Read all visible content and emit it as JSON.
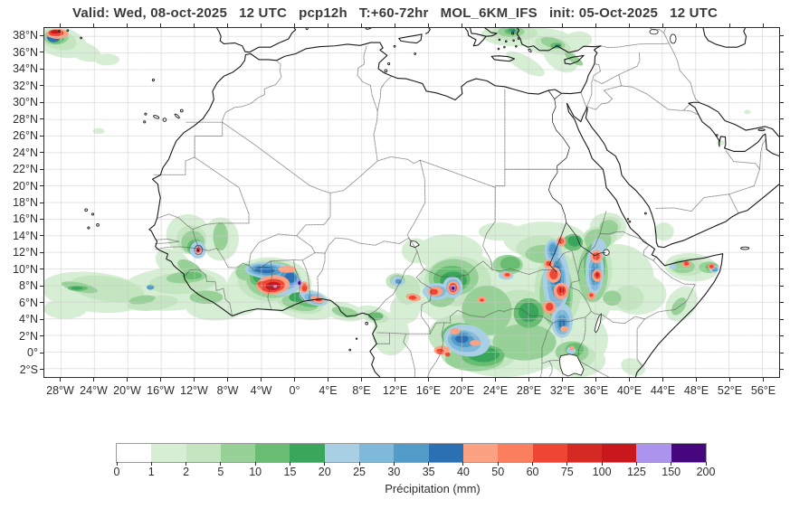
{
  "title": "Valid: Wed, 08-oct-2025   12 UTC   pcp12h   T:+60-72hr   MOL_6KM_IFS   init: 05-Oct-2025   12 UTC",
  "map": {
    "extent": {
      "lon_min": -30,
      "lon_max": 58,
      "lat_min": -3,
      "lat_max": 39
    },
    "grid": "dashed",
    "lat_ticks": [
      {
        "label": "38°N",
        "deg": 38
      },
      {
        "label": "36°N",
        "deg": 36
      },
      {
        "label": "34°N",
        "deg": 34
      },
      {
        "label": "32°N",
        "deg": 32
      },
      {
        "label": "30°N",
        "deg": 30
      },
      {
        "label": "28°N",
        "deg": 28
      },
      {
        "label": "26°N",
        "deg": 26
      },
      {
        "label": "24°N",
        "deg": 24
      },
      {
        "label": "22°N",
        "deg": 22
      },
      {
        "label": "20°N",
        "deg": 20
      },
      {
        "label": "18°N",
        "deg": 18
      },
      {
        "label": "16°N",
        "deg": 16
      },
      {
        "label": "14°N",
        "deg": 14
      },
      {
        "label": "12°N",
        "deg": 12
      },
      {
        "label": "10°N",
        "deg": 10
      },
      {
        "label": "8°N",
        "deg": 8
      },
      {
        "label": "6°N",
        "deg": 6
      },
      {
        "label": "4°N",
        "deg": 4
      },
      {
        "label": "2°N",
        "deg": 2
      },
      {
        "label": "0°",
        "deg": 0
      },
      {
        "label": "2°S",
        "deg": -2
      }
    ],
    "lon_ticks": [
      {
        "label": "28°W",
        "deg": -28
      },
      {
        "label": "24°W",
        "deg": -24
      },
      {
        "label": "20°W",
        "deg": -20
      },
      {
        "label": "16°W",
        "deg": -16
      },
      {
        "label": "12°W",
        "deg": -12
      },
      {
        "label": "8°W",
        "deg": -8
      },
      {
        "label": "4°W",
        "deg": -4
      },
      {
        "label": "0°",
        "deg": 0
      },
      {
        "label": "4°E",
        "deg": 4
      },
      {
        "label": "8°E",
        "deg": 8
      },
      {
        "label": "12°E",
        "deg": 12
      },
      {
        "label": "16°E",
        "deg": 16
      },
      {
        "label": "20°E",
        "deg": 20
      },
      {
        "label": "24°E",
        "deg": 24
      },
      {
        "label": "28°E",
        "deg": 28
      },
      {
        "label": "32°E",
        "deg": 32
      },
      {
        "label": "36°E",
        "deg": 36
      },
      {
        "label": "40°E",
        "deg": 40
      },
      {
        "label": "44°E",
        "deg": 44
      },
      {
        "label": "48°E",
        "deg": 48
      },
      {
        "label": "52°E",
        "deg": 52
      },
      {
        "label": "56°E",
        "deg": 56
      }
    ]
  },
  "colorbar": {
    "label": "Précipitation (mm)",
    "tick_labels": [
      "0",
      "1",
      "2",
      "5",
      "10",
      "15",
      "20",
      "25",
      "30",
      "35",
      "40",
      "50",
      "60",
      "75",
      "100",
      "125",
      "150",
      "200"
    ],
    "segment_colors": [
      "#ffffff",
      "#d6eed3",
      "#c3e5c0",
      "#97d198",
      "#69bd72",
      "#3aa65c",
      "#a9cfe5",
      "#7eb8da",
      "#539cc9",
      "#2a70b2",
      "#fda183",
      "#fb7e5e",
      "#ef4633",
      "#d52a24",
      "#c9171e",
      "#ab93ee",
      "#46067e"
    ]
  },
  "chart_data": {
    "type": "heatmap",
    "title": "12h accumulated precipitation forecast over Africa",
    "legend_units": "mm",
    "legend_bounds": [
      0,
      1,
      2,
      5,
      10,
      15,
      20,
      25,
      30,
      35,
      40,
      50,
      60,
      75,
      100,
      125,
      150,
      200
    ],
    "features": [
      {
        "area": "NE Atlantic storm at map corner (28W, 38N)",
        "peak_mm": "100-125"
      },
      {
        "area": "Guinea highlands (12W, 12N)",
        "peak_mm": "150-200"
      },
      {
        "area": "Ghana / Côte d'Ivoire (3W, 8N)",
        "peak_mm": "100-125"
      },
      {
        "area": "Togo-Benin coast (1E, 8N)",
        "peak_mm": "150-200"
      },
      {
        "area": "Central African Republic (19E, 8N)",
        "peak_mm": "150-200"
      },
      {
        "area": "Congo basin (20E, 1N)",
        "peak_mm": "60-75"
      },
      {
        "area": "South Sudan column (31E, 3-13N)",
        "peak_mm": "60-75"
      },
      {
        "area": "Western Ethiopia (36E, 9-12N)",
        "peak_mm": "75-100"
      },
      {
        "area": "Northern Somalia (46-50E, 10N)",
        "peak_mm": "60-75"
      },
      {
        "area": "Aegean / Western Turkey (26E, 38N)",
        "peak_mm": "35-40"
      },
      {
        "area": "Atlantic ITCZ band (30W-8W, 4-10N)",
        "peak_mm": "5-15"
      }
    ]
  }
}
